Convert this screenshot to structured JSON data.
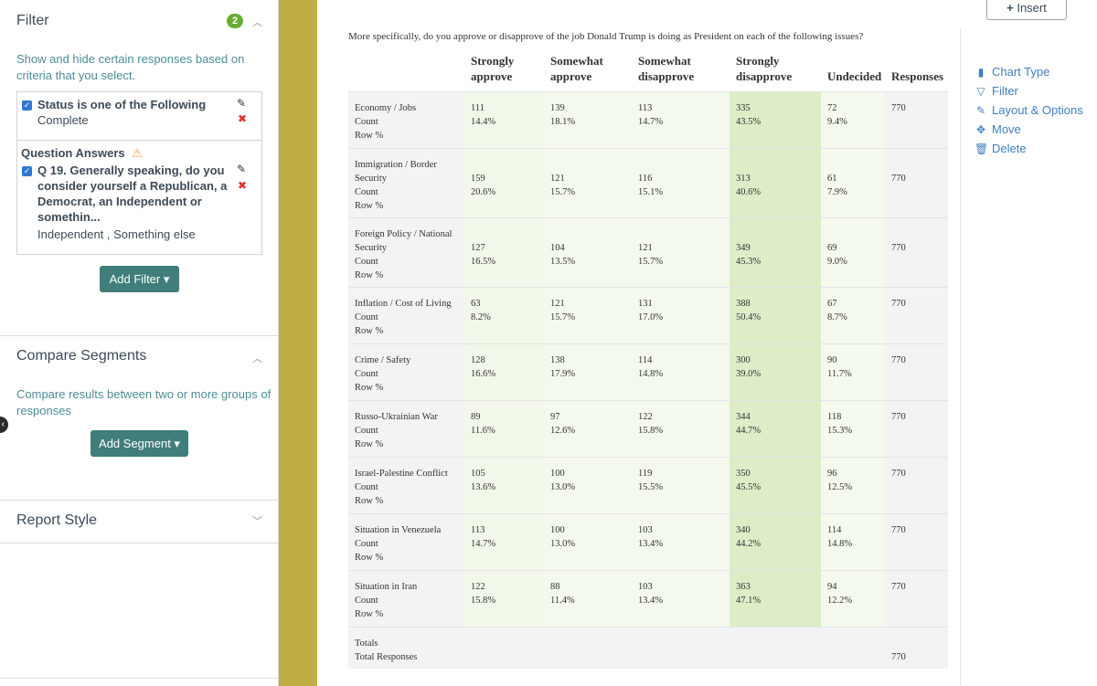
{
  "sidebar": {
    "filter": {
      "title": "Filter",
      "badge": "2",
      "description_line1": "Show and hide certain responses based on",
      "description_line2": "criteria that you select.",
      "status_condition": "Status is one of the Following",
      "status_value": "Complete",
      "question_answers_label": "Question Answers",
      "q_line1": "Q 19. Generally speaking, do you",
      "q_line2": "consider yourself a Republican, a",
      "q_line3": "Democrat, an Independent or",
      "q_line4": "somethin...",
      "q_value": "Independent , Something else",
      "add_filter_label": "Add Filter ▾"
    },
    "compare": {
      "title": "Compare Segments",
      "description_line1": "Compare results between two or more groups of",
      "description_line2": "responses",
      "add_segment_label": "Add Segment ▾"
    },
    "report_style": {
      "title": "Report Style"
    }
  },
  "main": {
    "insert_label": "Insert",
    "question": "More specifically, do you approve or disapprove of the job Donald Trump is doing as President on each of the following issues?",
    "columns": [
      {
        "l1": "Strongly",
        "l2": "approve"
      },
      {
        "l1": "Somewhat",
        "l2": "approve"
      },
      {
        "l1": "Somewhat",
        "l2": "disapprove"
      },
      {
        "l1": "Strongly",
        "l2": "disapprove"
      },
      {
        "l1": "",
        "l2": "Undecided"
      },
      {
        "l1": "",
        "l2": "Responses"
      }
    ],
    "rows": [
      {
        "label": [
          "Economy / Jobs"
        ],
        "count": [
          "111",
          "139",
          "113",
          "335",
          "72"
        ],
        "pct": [
          "14.4%",
          "18.1%",
          "14.7%",
          "43.5%",
          "9.4%"
        ],
        "responses": "770"
      },
      {
        "label": [
          "Immigration / Border",
          "Security"
        ],
        "count": [
          "159",
          "121",
          "116",
          "313",
          "61"
        ],
        "pct": [
          "20.6%",
          "15.7%",
          "15.1%",
          "40.6%",
          "7.9%"
        ],
        "responses": "770"
      },
      {
        "label": [
          "Foreign Policy / National",
          "Security"
        ],
        "count": [
          "127",
          "104",
          "121",
          "349",
          "69"
        ],
        "pct": [
          "16.5%",
          "13.5%",
          "15.7%",
          "45.3%",
          "9.0%"
        ],
        "responses": "770"
      },
      {
        "label": [
          "Inflation / Cost of Living"
        ],
        "count": [
          "63",
          "121",
          "131",
          "388",
          "67"
        ],
        "pct": [
          "8.2%",
          "15.7%",
          "17.0%",
          "50.4%",
          "8.7%"
        ],
        "responses": "770"
      },
      {
        "label": [
          "Crime / Safety"
        ],
        "count": [
          "128",
          "138",
          "114",
          "300",
          "90"
        ],
        "pct": [
          "16.6%",
          "17.9%",
          "14.8%",
          "39.0%",
          "11.7%"
        ],
        "responses": "770"
      },
      {
        "label": [
          "Russo-Ukrainian War"
        ],
        "count": [
          "89",
          "97",
          "122",
          "344",
          "118"
        ],
        "pct": [
          "11.6%",
          "12.6%",
          "15.8%",
          "44.7%",
          "15.3%"
        ],
        "responses": "770"
      },
      {
        "label": [
          "Israel-Palestine Conflict"
        ],
        "count": [
          "105",
          "100",
          "119",
          "350",
          "96"
        ],
        "pct": [
          "13.6%",
          "13.0%",
          "15.5%",
          "45.5%",
          "12.5%"
        ],
        "responses": "770"
      },
      {
        "label": [
          "Situation in Venezuela"
        ],
        "count": [
          "113",
          "100",
          "103",
          "340",
          "114"
        ],
        "pct": [
          "14.7%",
          "13.0%",
          "13.4%",
          "44.2%",
          "14.8%"
        ],
        "responses": "770"
      },
      {
        "label": [
          "Situation in Iran"
        ],
        "count": [
          "122",
          "88",
          "103",
          "363",
          "94"
        ],
        "pct": [
          "15.8%",
          "11.4%",
          "13.4%",
          "47.1%",
          "12.2%"
        ],
        "responses": "770"
      }
    ],
    "count_label": "Count",
    "rowpct_label": "Row %",
    "totals": {
      "label": "Totals",
      "sub": "Total Responses",
      "value": "770"
    }
  },
  "actions": {
    "chart_type": "Chart Type",
    "filter": "Filter",
    "layout": "Layout & Options",
    "move": "Move",
    "delete": "Delete"
  },
  "colors": {
    "teal_button": "#3f7e7b",
    "strip": "#c0ae45",
    "badge": "#6aab35",
    "link": "#3f7fbf"
  }
}
